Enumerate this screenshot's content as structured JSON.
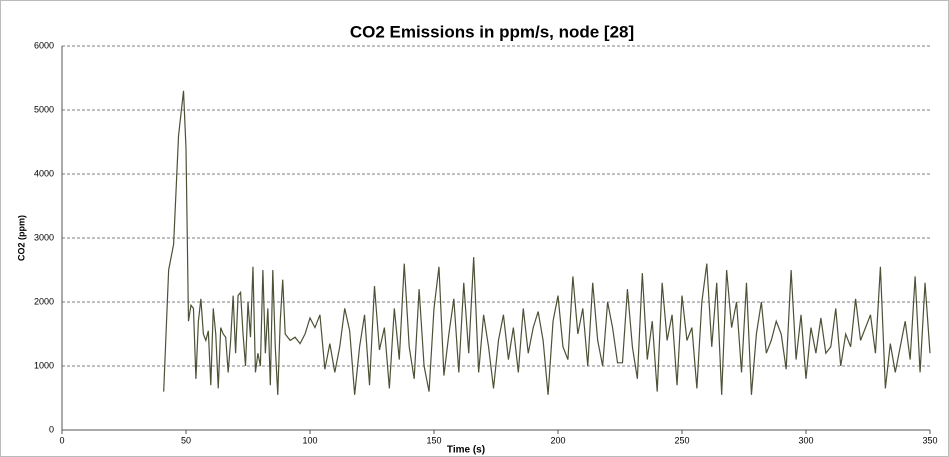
{
  "chart_data": {
    "type": "line",
    "title": "CO2 Emissions in ppm/s, node [28]",
    "xlabel": "Time (s)",
    "ylabel": "CO2 (ppm)",
    "xlim": [
      0,
      350
    ],
    "xticks": [
      0,
      50,
      100,
      150,
      200,
      250,
      300,
      350
    ],
    "ylim": [
      0,
      6000
    ],
    "yticks": [
      0,
      1000,
      2000,
      3000,
      4000,
      5000,
      6000
    ],
    "grid": true,
    "series": [
      {
        "name": "CO2",
        "color": "#4b5236",
        "x": [
          41,
          43,
          45,
          47,
          49,
          50,
          51,
          52,
          53,
          54,
          55,
          56,
          57,
          58,
          59,
          60,
          61,
          62,
          63,
          64,
          65,
          66,
          67,
          68,
          69,
          70,
          71,
          72,
          73,
          74,
          75,
          76,
          77,
          78,
          79,
          80,
          81,
          82,
          83,
          84,
          85,
          86,
          87,
          88,
          89,
          90,
          92,
          94,
          96,
          98,
          100,
          102,
          104,
          106,
          108,
          110,
          112,
          114,
          116,
          118,
          120,
          122,
          124,
          126,
          128,
          130,
          132,
          134,
          136,
          138,
          140,
          142,
          144,
          146,
          148,
          150,
          152,
          154,
          156,
          158,
          160,
          162,
          164,
          166,
          168,
          170,
          172,
          174,
          176,
          178,
          180,
          182,
          184,
          186,
          188,
          190,
          192,
          194,
          196,
          198,
          200,
          202,
          204,
          206,
          208,
          210,
          212,
          214,
          216,
          218,
          220,
          222,
          224,
          226,
          228,
          230,
          232,
          234,
          236,
          238,
          240,
          242,
          244,
          246,
          248,
          250,
          252,
          254,
          256,
          258,
          260,
          262,
          264,
          266,
          268,
          270,
          272,
          274,
          276,
          278,
          280,
          282,
          284,
          286,
          288,
          290,
          292,
          294,
          296,
          298,
          300,
          302,
          304,
          306,
          308,
          310,
          312,
          314,
          316,
          318,
          320,
          322,
          324,
          326,
          328,
          330,
          332,
          334,
          336,
          338,
          340,
          342,
          344,
          346,
          348,
          350
        ],
        "values": [
          600,
          2500,
          2900,
          4600,
          5300,
          4400,
          1700,
          1950,
          1900,
          800,
          1700,
          2050,
          1500,
          1400,
          1550,
          700,
          1900,
          1500,
          650,
          1600,
          1500,
          1450,
          900,
          1400,
          2100,
          1200,
          2100,
          2150,
          1500,
          1000,
          2000,
          1450,
          2550,
          900,
          1200,
          1000,
          2500,
          1200,
          1900,
          700,
          2500,
          1300,
          550,
          1700,
          2350,
          1500,
          1400,
          1450,
          1350,
          1500,
          1750,
          1600,
          1800,
          950,
          1350,
          900,
          1300,
          1900,
          1550,
          550,
          1300,
          1800,
          700,
          2250,
          1250,
          1600,
          650,
          1900,
          1100,
          2600,
          1300,
          800,
          2200,
          1000,
          600,
          1900,
          2550,
          850,
          1500,
          2050,
          900,
          2300,
          1200,
          2700,
          900,
          1800,
          1300,
          650,
          1400,
          1800,
          1100,
          1600,
          900,
          1900,
          1200,
          1600,
          1850,
          1400,
          550,
          1700,
          2100,
          1300,
          1100,
          2400,
          1500,
          1900,
          1000,
          2300,
          1400,
          1000,
          2000,
          1600,
          1050,
          1050,
          2200,
          1300,
          800,
          2450,
          1100,
          1700,
          600,
          2300,
          1400,
          1800,
          700,
          2100,
          1400,
          1600,
          650,
          2000,
          2600,
          1300,
          2300,
          550,
          2500,
          1600,
          2000,
          900,
          2300,
          550,
          1500,
          2000,
          1200,
          1400,
          1700,
          1500,
          950,
          2500,
          1100,
          1800,
          800,
          1600,
          1200,
          1750,
          1200,
          1300,
          1900,
          1000,
          1500,
          1300,
          2050,
          1400,
          1600,
          1800,
          1200,
          2550,
          650,
          1350,
          900,
          1300,
          1700,
          1100,
          2400,
          900,
          2300,
          1200
        ]
      }
    ]
  }
}
